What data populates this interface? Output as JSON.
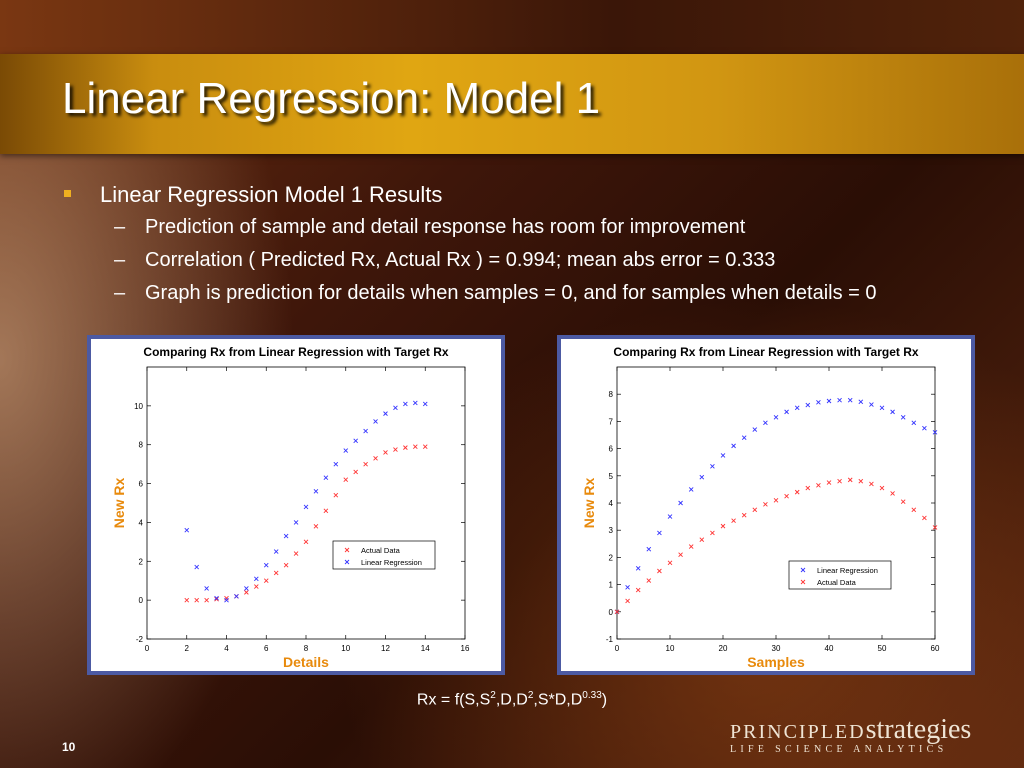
{
  "slide": {
    "title": "Linear Regression: Model 1",
    "bullet": "Linear Regression Model 1 Results",
    "subbullets": [
      "Prediction of sample and detail response has room for improvement",
      "Correlation ( Predicted Rx, Actual Rx ) = 0.994; mean abs error = 0.333",
      "Graph is prediction for details when samples = 0, and for samples when details = 0"
    ],
    "dash": "–",
    "formula": {
      "base": "Rx = f(S,S",
      "sup1": "2",
      "mid": ",D,D",
      "sup2": "2",
      "mid2": ",S*D,D",
      "sup3": "0.33",
      "end": ")"
    },
    "slide_number": "10",
    "logo": {
      "caps": "PRINCIPLED",
      "lower": "strategies",
      "tagline": "LIFE SCIENCE ANALYTICS"
    },
    "colors": {
      "bullet_marker": "#f0b020",
      "axis_label": "#e88a0c",
      "actual_series": "#ff3333",
      "regression_series": "#3333ff",
      "chart_border": "#4c5aa3"
    }
  },
  "chart_data": [
    {
      "type": "scatter",
      "title": "Comparing Rx from Linear Regression with Target Rx",
      "xlabel": "Details",
      "ylabel": "New Rx",
      "xlim": [
        0,
        16
      ],
      "ylim": [
        -2,
        12
      ],
      "xticks": [
        0,
        2,
        4,
        6,
        8,
        10,
        12,
        14,
        16
      ],
      "yticks": [
        -2,
        0,
        2,
        4,
        6,
        8,
        10
      ],
      "legend_position": "middle-right",
      "series": [
        {
          "name": "Actual Data",
          "marker": "x",
          "color": "#ff3333",
          "x": [
            2,
            2.5,
            3,
            3.5,
            4,
            4.5,
            5,
            5.5,
            6,
            6.5,
            7,
            7.5,
            8,
            8.5,
            9,
            9.5,
            10,
            10.5,
            11,
            11.5,
            12,
            12.5,
            13,
            13.5,
            14
          ],
          "y": [
            0,
            0,
            0,
            0.05,
            0.1,
            0.2,
            0.4,
            0.7,
            1.0,
            1.4,
            1.8,
            2.4,
            3.0,
            3.8,
            4.6,
            5.4,
            6.2,
            6.6,
            7.0,
            7.3,
            7.6,
            7.75,
            7.85,
            7.9,
            7.9
          ]
        },
        {
          "name": "Linear Regression",
          "marker": "x",
          "color": "#3333ff",
          "x": [
            2,
            2.5,
            3,
            3.5,
            4,
            4.5,
            5,
            5.5,
            6,
            6.5,
            7,
            7.5,
            8,
            8.5,
            9,
            9.5,
            10,
            10.5,
            11,
            11.5,
            12,
            12.5,
            13,
            13.5,
            14
          ],
          "y": [
            3.6,
            1.7,
            0.6,
            0.1,
            0,
            0.2,
            0.6,
            1.1,
            1.8,
            2.5,
            3.3,
            4.0,
            4.8,
            5.6,
            6.3,
            7.0,
            7.7,
            8.2,
            8.7,
            9.2,
            9.6,
            9.9,
            10.1,
            10.15,
            10.1
          ]
        }
      ]
    },
    {
      "type": "scatter",
      "title": "Comparing Rx from Linear Regression with Target Rx",
      "xlabel": "Samples",
      "ylabel": "New Rx",
      "xlim": [
        0,
        60
      ],
      "ylim": [
        -1,
        9
      ],
      "xticks": [
        0,
        10,
        20,
        30,
        40,
        50,
        60
      ],
      "yticks": [
        -1,
        0,
        1,
        2,
        3,
        4,
        5,
        6,
        7,
        8
      ],
      "legend_position": "lower-right",
      "series": [
        {
          "name": "Linear Regression",
          "marker": "x",
          "color": "#3333ff",
          "x": [
            0,
            2,
            4,
            6,
            8,
            10,
            12,
            14,
            16,
            18,
            20,
            22,
            24,
            26,
            28,
            30,
            32,
            34,
            36,
            38,
            40,
            42,
            44,
            46,
            48,
            50,
            52,
            54,
            56,
            58,
            60
          ],
          "y": [
            0.0,
            0.9,
            1.6,
            2.3,
            2.9,
            3.5,
            4.0,
            4.5,
            4.95,
            5.35,
            5.75,
            6.1,
            6.4,
            6.7,
            6.95,
            7.15,
            7.35,
            7.5,
            7.6,
            7.7,
            7.75,
            7.78,
            7.78,
            7.72,
            7.62,
            7.5,
            7.35,
            7.15,
            6.95,
            6.75,
            6.6
          ]
        },
        {
          "name": "Actual Data",
          "marker": "x",
          "color": "#ff3333",
          "x": [
            0,
            2,
            4,
            6,
            8,
            10,
            12,
            14,
            16,
            18,
            20,
            22,
            24,
            26,
            28,
            30,
            32,
            34,
            36,
            38,
            40,
            42,
            44,
            46,
            48,
            50,
            52,
            54,
            56,
            58,
            60
          ],
          "y": [
            0.0,
            0.4,
            0.8,
            1.15,
            1.5,
            1.8,
            2.1,
            2.4,
            2.65,
            2.9,
            3.15,
            3.35,
            3.55,
            3.75,
            3.95,
            4.1,
            4.25,
            4.4,
            4.55,
            4.65,
            4.75,
            4.8,
            4.85,
            4.8,
            4.7,
            4.55,
            4.35,
            4.05,
            3.75,
            3.45,
            3.1
          ]
        }
      ]
    }
  ]
}
